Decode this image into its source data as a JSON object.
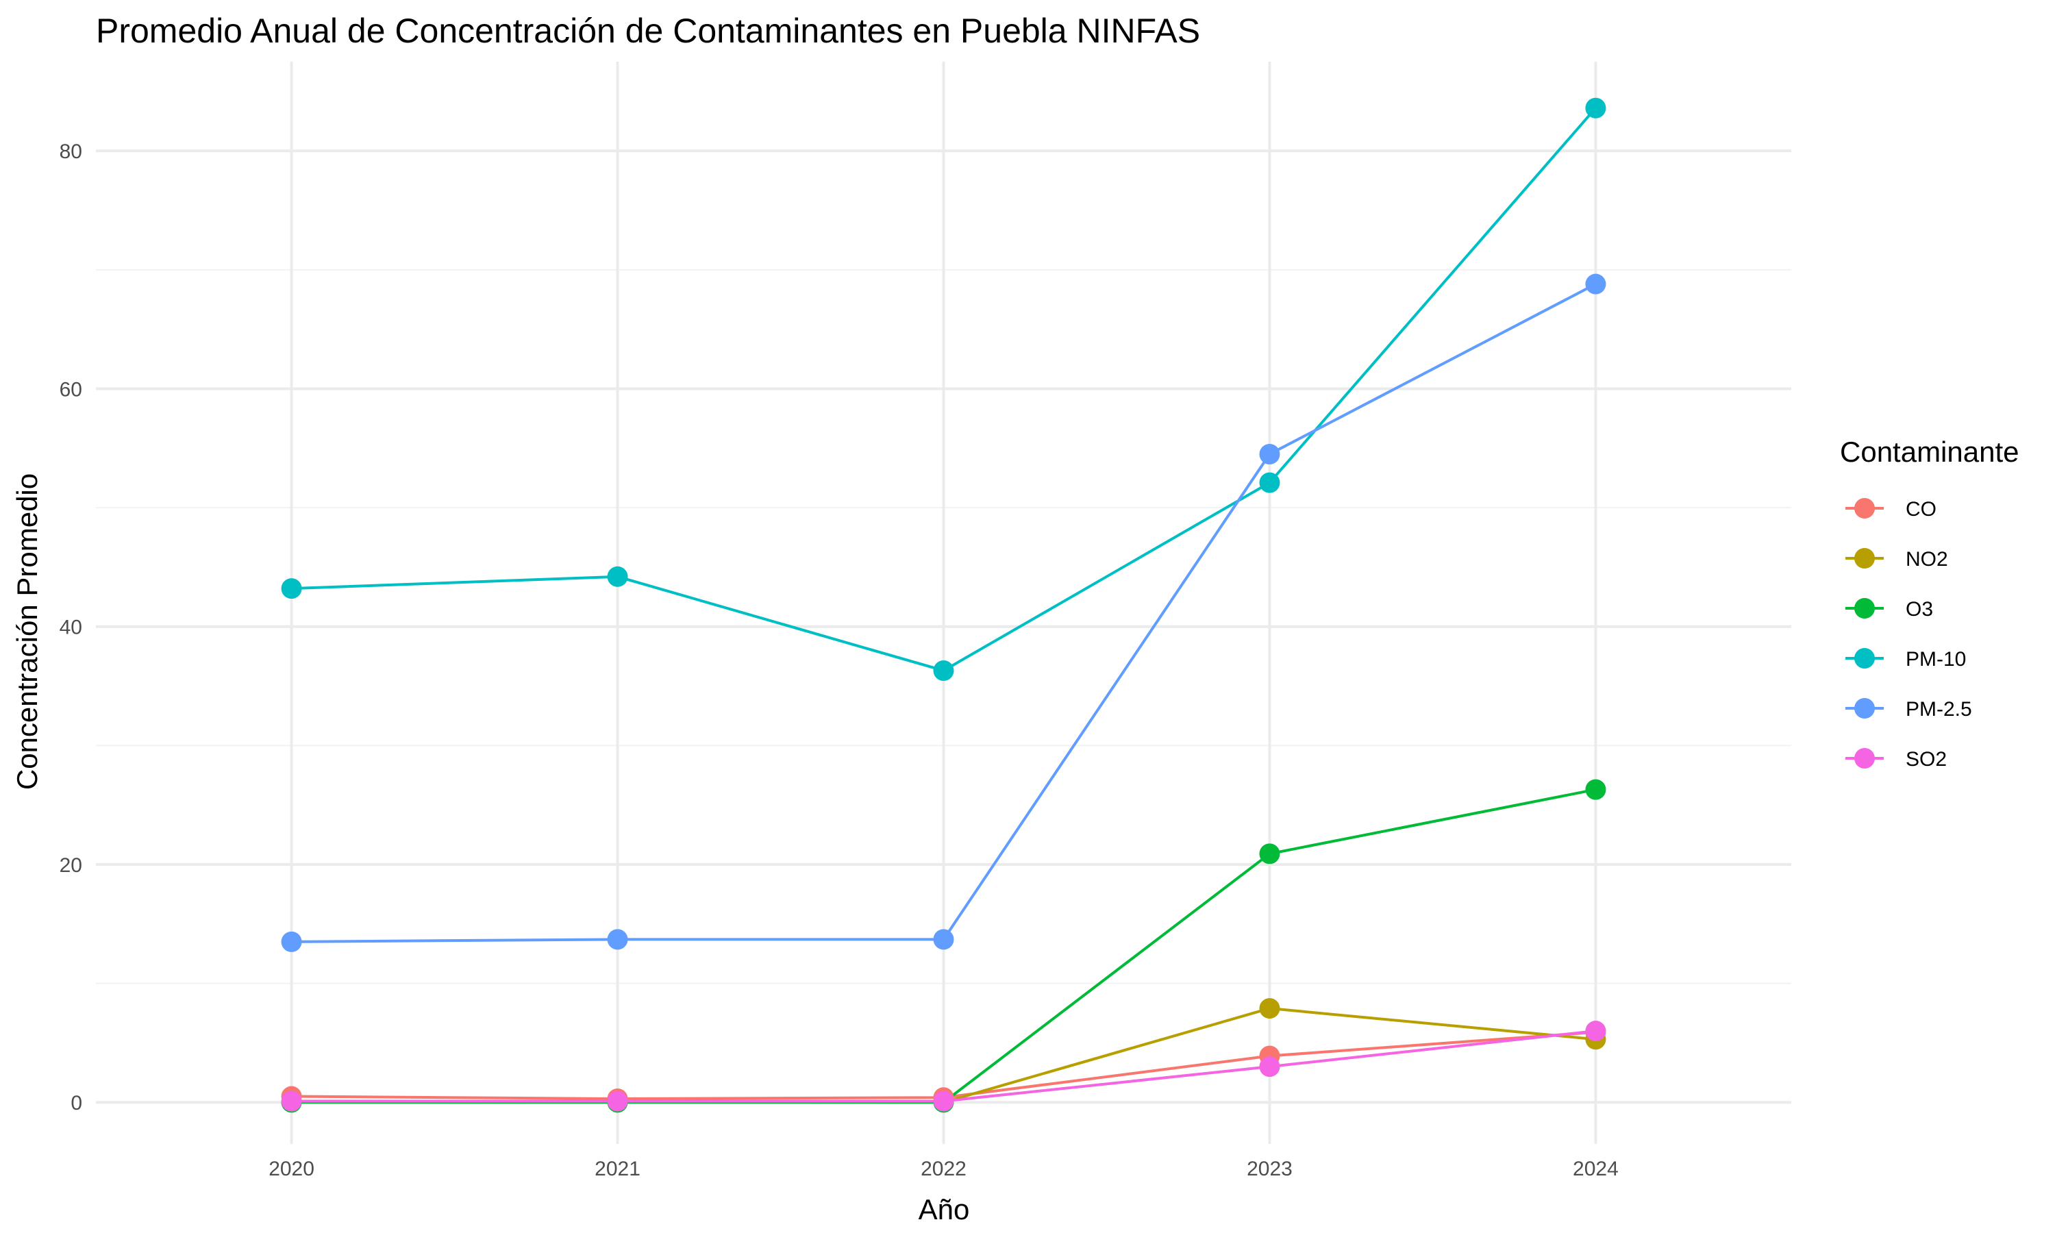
{
  "chart_data": {
    "type": "line",
    "title": "Promedio Anual de Concentración de Contaminantes en Puebla NINFAS",
    "xlabel": "Año",
    "ylabel": "Concentración Promedio",
    "x": [
      2020,
      2021,
      2022,
      2023,
      2024
    ],
    "x_tick_labels": [
      "2020",
      "2021",
      "2022",
      "2023",
      "2024"
    ],
    "xlim": [
      2019.4,
      2024.6
    ],
    "ylim": [
      -3.5,
      87.5
    ],
    "y_ticks": [
      0,
      20,
      40,
      60,
      80
    ],
    "y_tick_labels": [
      "0",
      "20",
      "40",
      "60",
      "80"
    ],
    "grid": true,
    "legend": {
      "title": "Contaminante",
      "position": "right"
    },
    "series": [
      {
        "name": "CO",
        "color": "#F8766D",
        "values": [
          0.5,
          0.3,
          0.4,
          3.9,
          5.9
        ]
      },
      {
        "name": "NO2",
        "color": "#B79F00",
        "values": [
          0.0,
          0.0,
          0.0,
          7.9,
          5.3
        ]
      },
      {
        "name": "O3",
        "color": "#00BA38",
        "values": [
          0.0,
          0.0,
          0.0,
          20.9,
          26.3
        ]
      },
      {
        "name": "PM-10",
        "color": "#00BFC4",
        "values": [
          43.2,
          44.2,
          36.3,
          52.1,
          83.6
        ]
      },
      {
        "name": "PM-2.5",
        "color": "#619CFF",
        "values": [
          13.5,
          13.7,
          13.7,
          54.5,
          68.8
        ]
      },
      {
        "name": "SO2",
        "color": "#F564E3",
        "values": [
          0.1,
          0.1,
          0.1,
          3.0,
          6.0
        ]
      }
    ]
  }
}
